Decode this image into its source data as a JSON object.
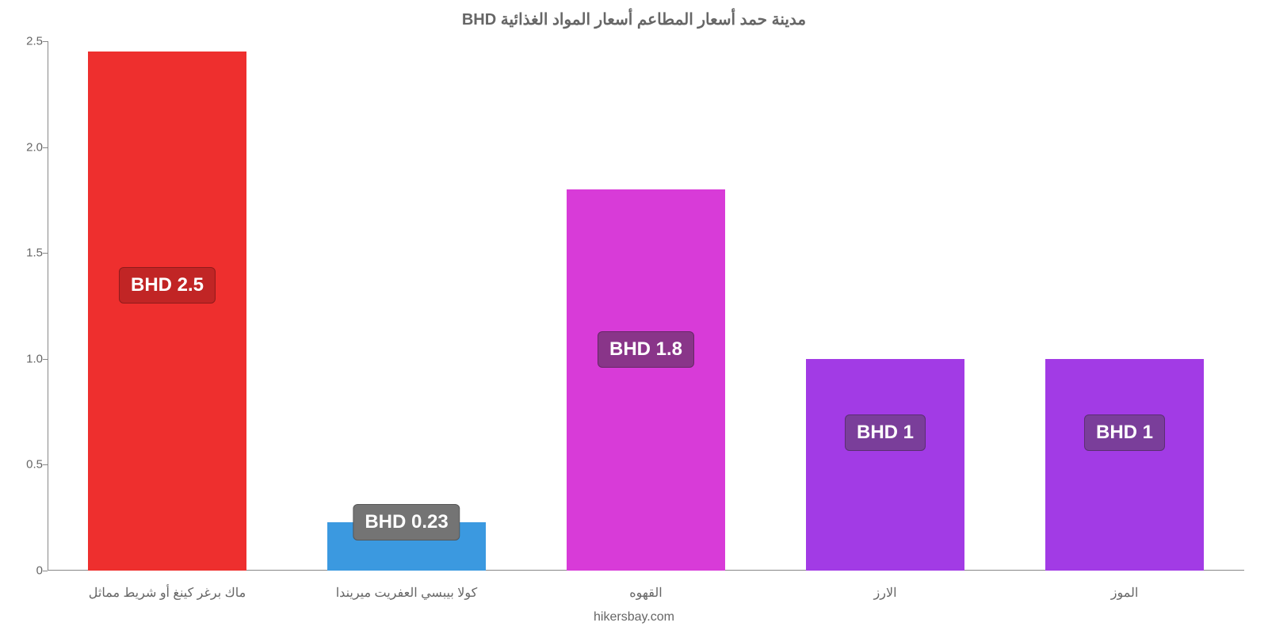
{
  "chart": {
    "type": "bar",
    "title": "مدينة حمد أسعار المطاعم أسعار المواد الغذائية BHD",
    "title_fontsize": 20,
    "title_color": "#666666",
    "source": "hikersbay.com",
    "background_color": "#ffffff",
    "axis_color": "#888888",
    "label_color": "#666666",
    "label_fontsize": 16,
    "value_label_fontsize": 24,
    "value_label_text_color": "#ffffff",
    "ylim": [
      0,
      2.5
    ],
    "ytick_step": 0.5,
    "yticks": [
      "0",
      "0.5",
      "1.0",
      "1.5",
      "2.0",
      "2.5"
    ],
    "bar_width": 0.66,
    "bars": [
      {
        "category": "ماك برغر كينغ أو شريط مماثل",
        "value": 2.45,
        "display": "BHD 2.5",
        "bar_color": "#ee2f2e",
        "badge_bg": "#c12525",
        "badge_top_frac": 0.45
      },
      {
        "category": "كولا بيبسي العفريت ميريندا",
        "value": 0.23,
        "display": "BHD 0.23",
        "bar_color": "#3b99e0",
        "badge_bg": "#747474",
        "badge_top_frac": 0.0
      },
      {
        "category": "القهوه",
        "value": 1.8,
        "display": "BHD 1.8",
        "bar_color": "#d83bd8",
        "badge_bg": "#893589",
        "badge_top_frac": 0.42
      },
      {
        "category": "الارز",
        "value": 1.0,
        "display": "BHD 1",
        "bar_color": "#a23be5",
        "badge_bg": "#7a3e9a",
        "badge_top_frac": 0.35
      },
      {
        "category": "الموز",
        "value": 1.0,
        "display": "BHD 1",
        "bar_color": "#a23be5",
        "badge_bg": "#7a3e9a",
        "badge_top_frac": 0.35
      }
    ]
  }
}
